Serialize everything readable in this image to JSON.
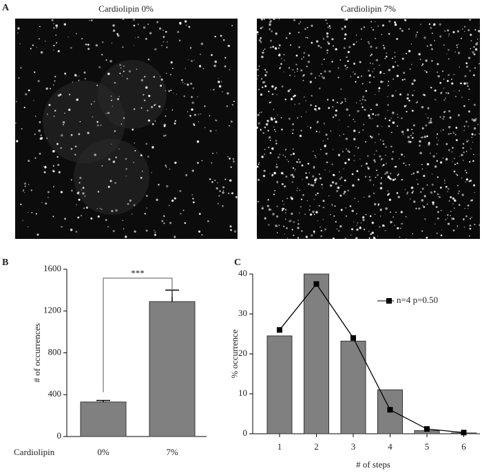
{
  "images": [
    {
      "panel_label": "A",
      "title": "Cardiolipin 0%"
    },
    {
      "title": "Cardiolipin 7%"
    }
  ],
  "chart_data": [
    {
      "type": "bar",
      "panel_label": "B",
      "ylabel": "# of  occurrences",
      "xlabel": "Cardiolipin",
      "categories": [
        "0%",
        "7%"
      ],
      "values": [
        330,
        1290
      ],
      "errors": [
        15,
        110
      ],
      "color": "#808080",
      "annotation": "***",
      "ylim": [
        0,
        1600
      ],
      "yticks": [
        0,
        400,
        800,
        1200,
        1600
      ]
    },
    {
      "type": "bar",
      "panel_label": "C",
      "ylabel": "% occurrence",
      "xlabel": "# of steps",
      "categories": [
        "1",
        "2",
        "3",
        "4",
        "5",
        "6"
      ],
      "values": [
        24.5,
        40,
        23.2,
        11,
        0.8,
        0.2
      ],
      "color": "#808080",
      "series": [
        {
          "name": "n=4 p=0.50",
          "type": "line",
          "color": "#000000",
          "values": [
            26,
            37.5,
            24,
            6,
            1.2,
            0.3
          ]
        }
      ],
      "ylim": [
        0,
        40
      ],
      "yticks": [
        0,
        10,
        20,
        30,
        40
      ]
    }
  ]
}
